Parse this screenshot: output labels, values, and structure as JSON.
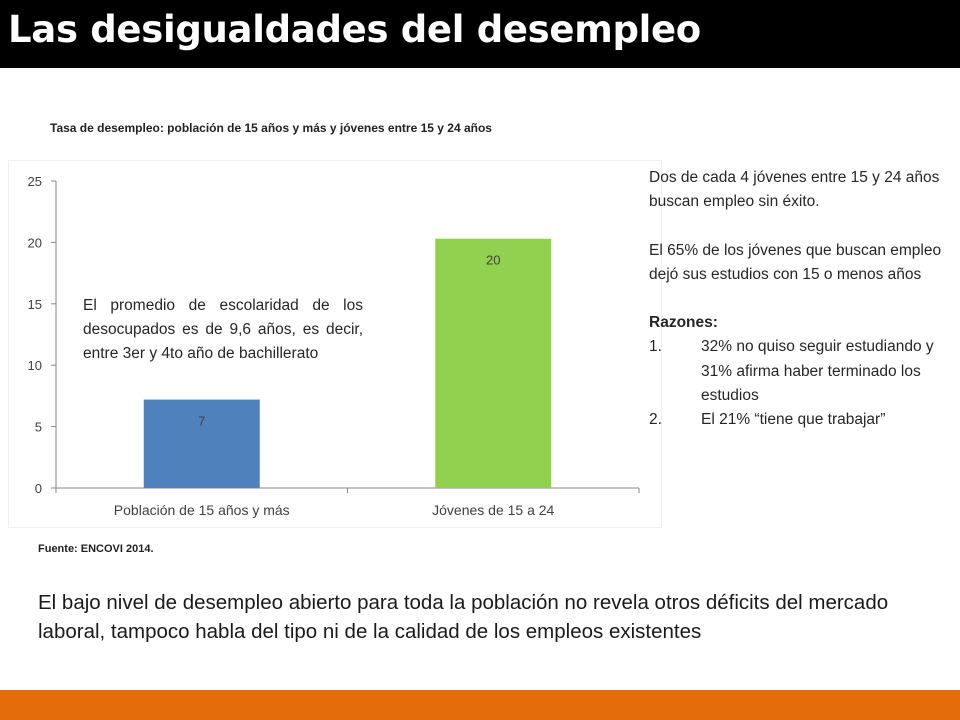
{
  "page": {
    "title": "Las desigualdades del desempleo",
    "source": "Fuente: ENCOVI 2014.",
    "bottom_text": "El bajo nivel de desempleo abierto para toda la población no revela otros déficits del mercado laboral,  tampoco habla del tipo ni de la calidad de los empleos existentes"
  },
  "colors": {
    "title_bar": "#000000",
    "footer_bar": "#e46c0a",
    "bar_total": "#4f81bd",
    "bar_youth": "#92d050"
  },
  "chart_data": {
    "type": "bar",
    "title": "Tasa de desempleo: población de 15 años y más y  jóvenes entre 15 y 24 años",
    "categories": [
      "Población  de 15 años y más",
      "Jóvenes de 15 a 24"
    ],
    "values": [
      7.2,
      20.3
    ],
    "data_labels": [
      "7",
      "20"
    ],
    "bar_colors": [
      "#4f81bd",
      "#92d050"
    ],
    "ylim": [
      0,
      25
    ],
    "yticks": [
      0,
      5,
      10,
      15,
      20,
      25
    ],
    "xlabel": "",
    "ylabel": "",
    "grid": false,
    "legend": "none",
    "annotation": "El promedio de escolaridad de los desocupados es de 9,6 años, es decir, entre 3er y 4to año de bachillerato"
  },
  "side": {
    "p1": "Dos de cada 4 jóvenes entre 15 y 24 años buscan empleo sin éxito.",
    "p2": "El 65% de los jóvenes que buscan empleo dejó sus estudios con 15 o menos años",
    "reasons_heading": "Razones:",
    "reasons": [
      {
        "num": "1.",
        "text": "32% no quiso seguir estudiando y 31% afirma haber terminado los estudios"
      },
      {
        "num": "2.",
        "text": "El 21% “tiene que trabajar”"
      }
    ]
  }
}
